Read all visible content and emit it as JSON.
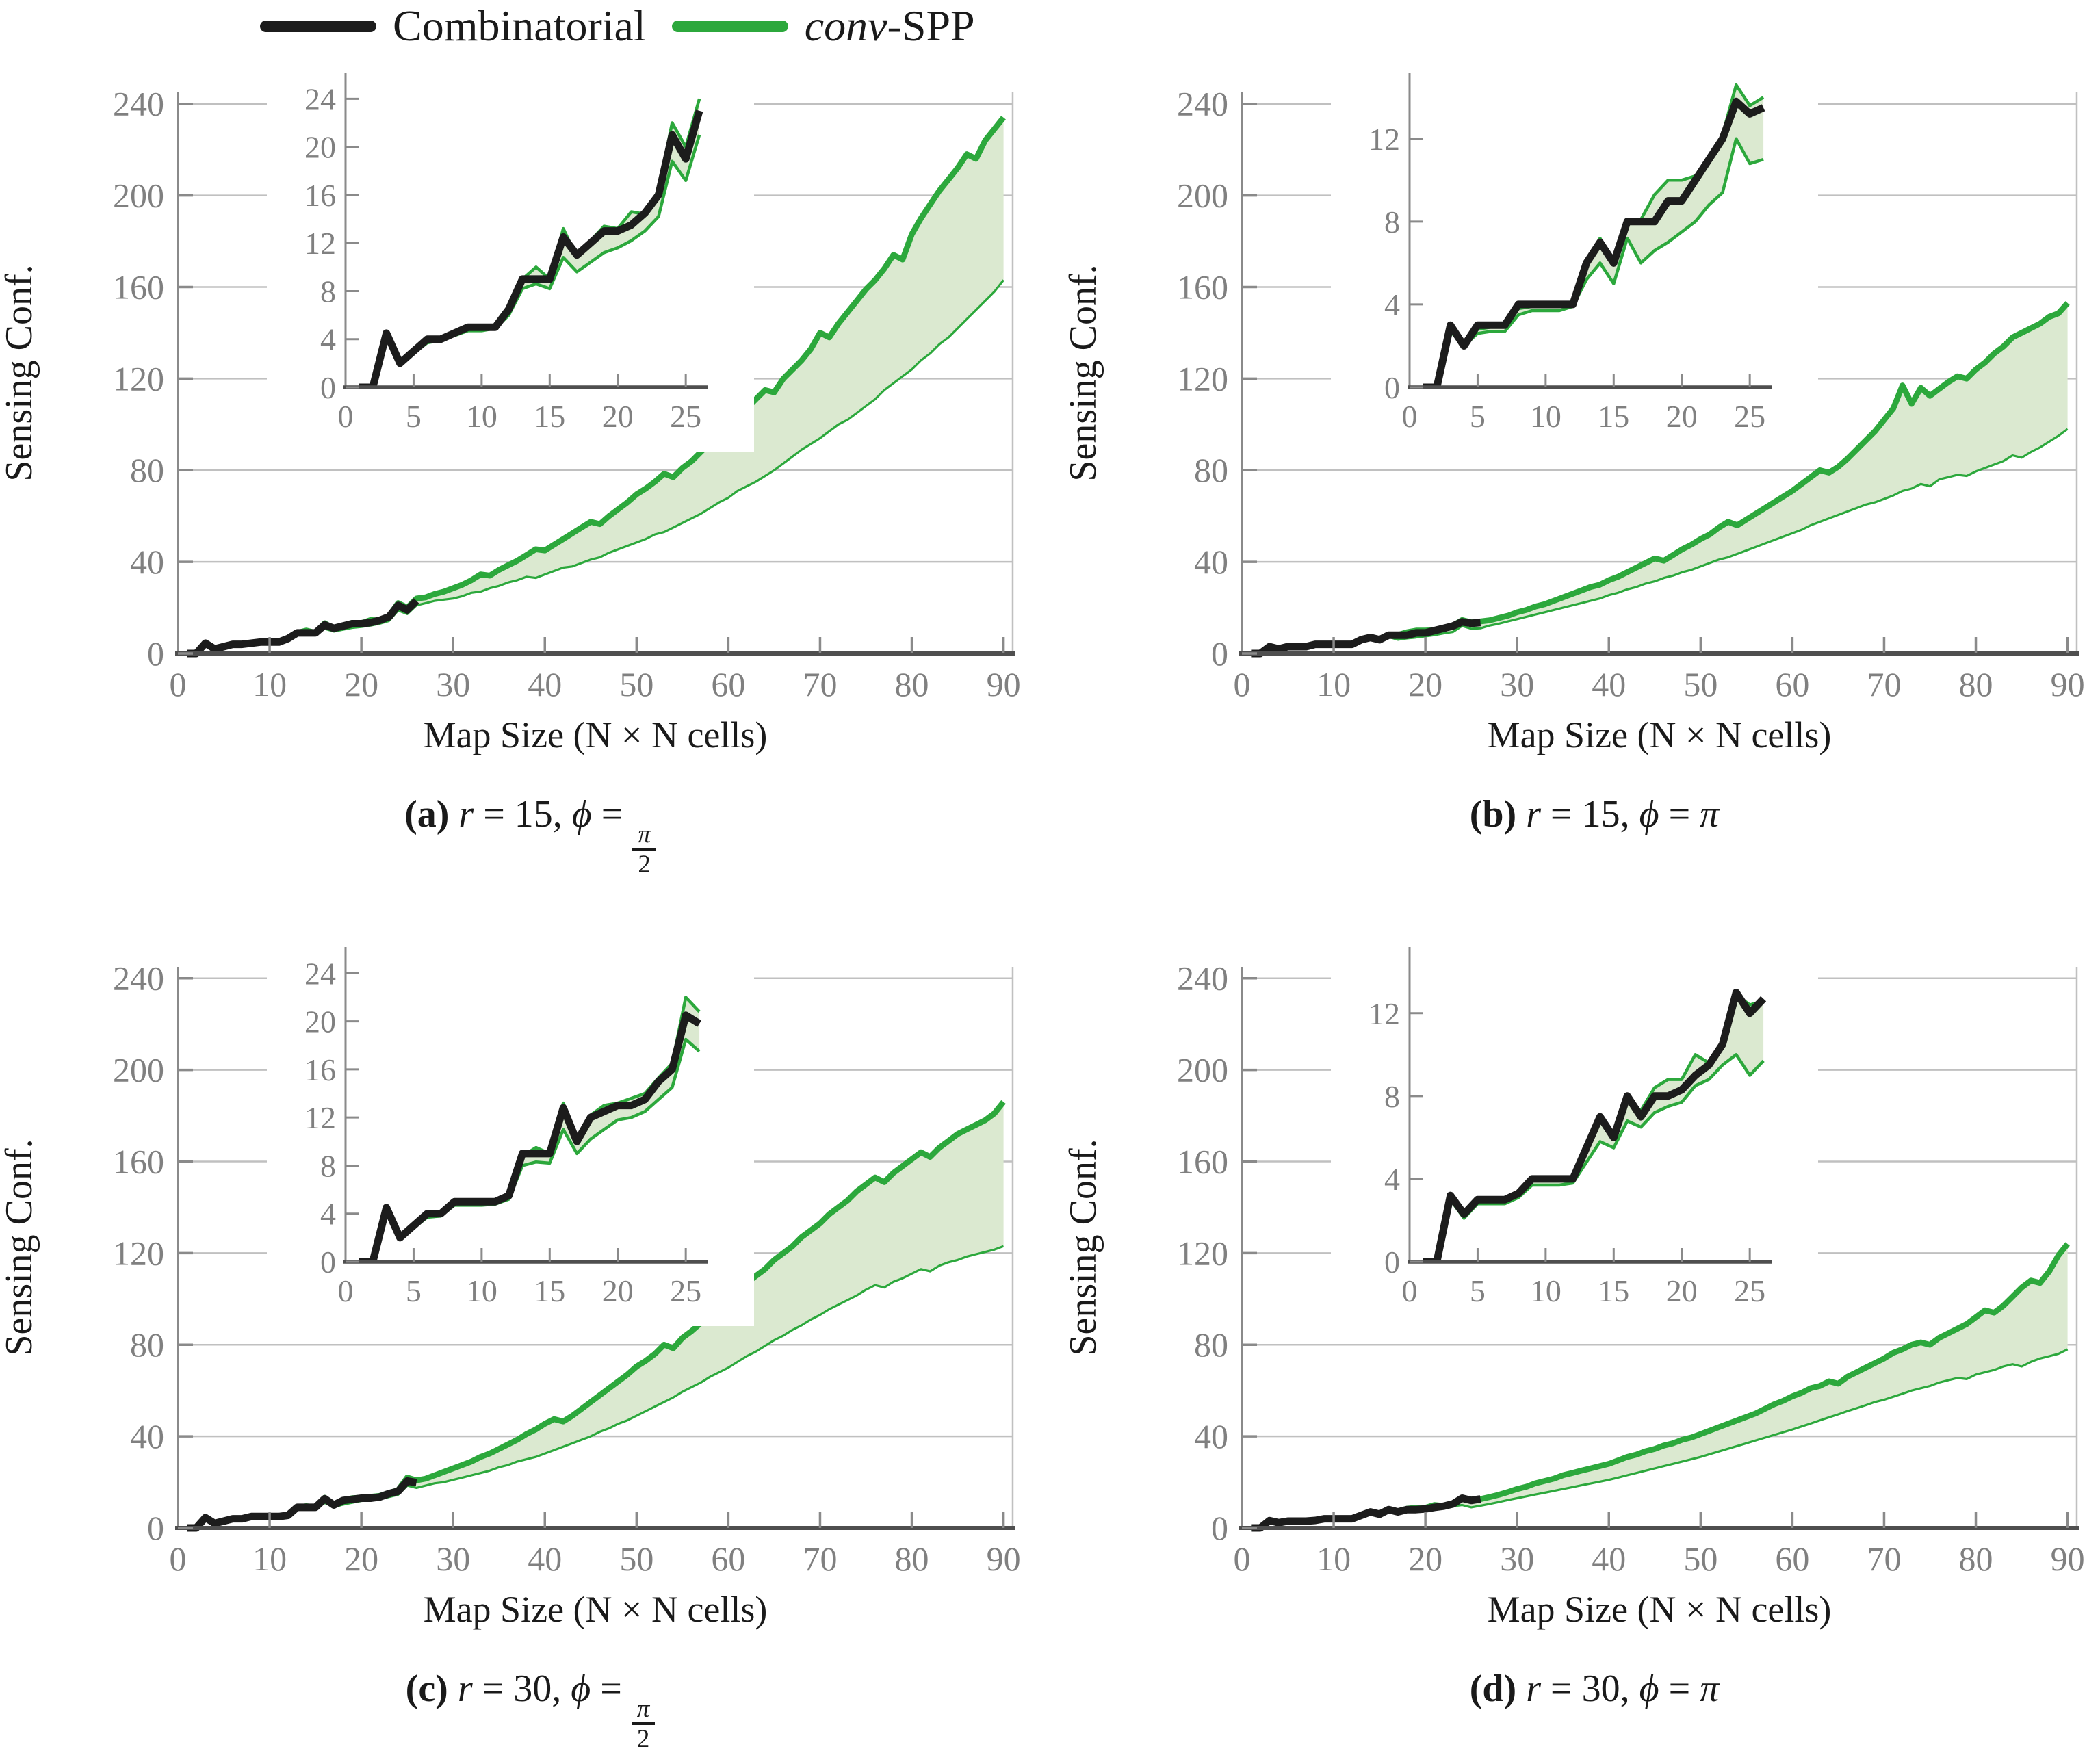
{
  "chart_data": {
    "type": "line",
    "legend": {
      "items": [
        {
          "label": "Combinatorial",
          "color": "#1c1c1c"
        },
        {
          "label_italic": "conv",
          "label_rest": "-SPP",
          "color": "#2ca83c"
        }
      ]
    },
    "colors": {
      "combinatorial": "#1c1c1c",
      "conv_line": "#2ca83c",
      "band_fill": "#dbe9d0",
      "grid": "#c0c0c0",
      "spine_dark": "#4f4f4f",
      "spine_light": "#8a8a8a",
      "tick_text": "#808080",
      "label_text": "#1a1a1a"
    },
    "axes": {
      "main": {
        "xlabel": "Map Size (N × N cells)",
        "ylabel": "Sensing Conf.",
        "xticks": [
          0,
          10,
          20,
          30,
          40,
          50,
          60,
          70,
          80,
          90
        ],
        "yticks": [
          0,
          40,
          80,
          120,
          160,
          200,
          240
        ],
        "xlim": [
          0,
          91
        ],
        "ylim": [
          0,
          245
        ],
        "grid": "horizontal"
      },
      "insets": {
        "hi": {
          "ymax": 25.5,
          "xmax": 26.5,
          "yticks": [
            0,
            4,
            8,
            12,
            16,
            20,
            24
          ],
          "xticks": [
            0,
            5,
            10,
            15,
            20,
            25
          ]
        },
        "lo": {
          "ymax": 14.8,
          "xmax": 26.5,
          "yticks": [
            0,
            4,
            8,
            12
          ],
          "xticks": [
            0,
            5,
            10,
            15,
            20,
            25
          ]
        }
      }
    },
    "charts": [
      {
        "id": "a",
        "inset": "hi",
        "caption": [
          {
            "t": "(a)",
            "bold": true
          },
          {
            "t": " "
          },
          {
            "t": "r",
            "italic": true
          },
          {
            "t": " = 15, "
          },
          {
            "t": "ϕ",
            "italic": true
          },
          {
            "t": " = "
          },
          {
            "frac": [
              "π",
              "2"
            ]
          }
        ],
        "x_start": 1,
        "combinatorial": [
          0,
          0,
          4.5,
          2,
          3,
          4,
          4,
          4.5,
          5,
          5,
          5,
          6.5,
          9,
          9,
          9,
          12.5,
          11,
          12,
          13,
          13,
          13.5,
          14.5,
          16,
          21,
          19,
          23
        ],
        "conv_upper": [
          0,
          0,
          4.3,
          2,
          2.9,
          3.9,
          4,
          4.4,
          4.9,
          4.9,
          5,
          6.4,
          9,
          10,
          9,
          13.2,
          10.8,
          12.2,
          13.4,
          13.2,
          14.6,
          14.4,
          16.4,
          22,
          20,
          24,
          24.5,
          26,
          27,
          28.5,
          30,
          32,
          34.5,
          34,
          36.5,
          38.5,
          40.5,
          43,
          45.5,
          45,
          47.5,
          50,
          52.5,
          55,
          57.5,
          56.5,
          60,
          63,
          66,
          69.5,
          72,
          75,
          78.5,
          77,
          81,
          84,
          88,
          92,
          96,
          104,
          102,
          107,
          111,
          115,
          114,
          120,
          124,
          128,
          133,
          140,
          138,
          144,
          149,
          154,
          159,
          163,
          168,
          174,
          172,
          183,
          190,
          196,
          202,
          207,
          212,
          218,
          216,
          224,
          229,
          234
        ],
        "conv_lower": [
          0,
          0,
          4.1,
          1.9,
          2.8,
          3.7,
          3.9,
          4.3,
          4.7,
          4.7,
          4.9,
          6,
          8.2,
          8.6,
          8.2,
          10.8,
          9.6,
          10.4,
          11.2,
          11.6,
          12.2,
          13,
          14.2,
          18.8,
          17.2,
          21,
          22,
          23,
          23.5,
          24,
          25,
          26.5,
          27,
          28.5,
          29.5,
          31,
          32,
          33.5,
          33,
          34.5,
          36,
          37.5,
          38,
          39.5,
          41,
          42,
          44,
          45.5,
          47,
          48.5,
          50,
          52,
          53,
          55,
          57,
          59,
          61,
          63.5,
          66,
          68,
          71,
          73,
          75,
          77.5,
          80,
          83,
          86,
          89,
          91.5,
          94,
          97,
          100,
          102,
          105,
          108,
          111,
          115,
          118,
          121,
          124,
          128,
          131,
          135,
          138,
          142,
          146,
          150,
          154,
          158,
          163
        ]
      },
      {
        "id": "b",
        "inset": "lo",
        "caption": [
          {
            "t": "(b)",
            "bold": true
          },
          {
            "t": " "
          },
          {
            "t": "r",
            "italic": true
          },
          {
            "t": " = 15, "
          },
          {
            "t": "ϕ",
            "italic": true
          },
          {
            "t": " = "
          },
          {
            "t": "π",
            "italic": true
          }
        ],
        "x_start": 1,
        "combinatorial": [
          0,
          0,
          3,
          2,
          3,
          3,
          3,
          4,
          4,
          4,
          4,
          4,
          6,
          7,
          6,
          8,
          8,
          8,
          9,
          9,
          10,
          11,
          12,
          13.8,
          13.2,
          13.5
        ],
        "conv_upper": [
          0,
          0,
          2.9,
          2.1,
          2.8,
          2.9,
          2.9,
          3.8,
          3.9,
          3.9,
          3.9,
          4,
          5.8,
          7.2,
          5.9,
          8,
          8.1,
          9.3,
          10,
          10,
          10.2,
          11,
          12.2,
          14.6,
          13.6,
          14,
          14.5,
          15.5,
          16.5,
          18,
          19,
          20.5,
          21.5,
          23,
          24.5,
          26,
          27.5,
          29,
          30,
          32,
          33.5,
          35.5,
          37.5,
          39.5,
          41.5,
          40.5,
          43,
          45.5,
          47.5,
          50,
          52,
          55,
          57.5,
          56,
          58.5,
          61,
          63.5,
          66,
          68.5,
          71,
          74,
          77,
          80,
          79,
          81.5,
          85,
          89,
          93,
          97,
          102,
          107,
          117,
          109,
          116,
          112.5,
          115.5,
          118.5,
          121,
          120,
          124,
          127,
          131,
          134,
          138,
          140,
          142,
          144,
          147,
          148.5,
          153
        ],
        "conv_lower": [
          0,
          0,
          2.7,
          2,
          2.6,
          2.7,
          2.7,
          3.5,
          3.7,
          3.7,
          3.7,
          3.9,
          5.2,
          6,
          5,
          7.2,
          6,
          6.6,
          7,
          7.5,
          8,
          8.8,
          9.4,
          12,
          10.8,
          11,
          12.2,
          13,
          14,
          15,
          16,
          17,
          18,
          19,
          20,
          21,
          22,
          23,
          24,
          25.5,
          26.5,
          28,
          29,
          30.5,
          31.5,
          33,
          34,
          35.5,
          36.5,
          38,
          39.5,
          41,
          42,
          43.5,
          45,
          46.5,
          48,
          49.5,
          51,
          52.5,
          54,
          56,
          57.5,
          59,
          60.5,
          62,
          63.5,
          65,
          66,
          67.5,
          69,
          71,
          72,
          74,
          73,
          76,
          77,
          78,
          77.5,
          79.5,
          81,
          82.5,
          84,
          86.5,
          85.5,
          88,
          90,
          92.5,
          95,
          98
        ]
      },
      {
        "id": "c",
        "inset": "hi",
        "caption": [
          {
            "t": "(c)",
            "bold": true
          },
          {
            "t": " "
          },
          {
            "t": "r",
            "italic": true
          },
          {
            "t": " = 30, "
          },
          {
            "t": "ϕ",
            "italic": true
          },
          {
            "t": " = "
          },
          {
            "frac": [
              "π",
              "2"
            ]
          }
        ],
        "x_start": 1,
        "combinatorial": [
          0,
          0,
          4.5,
          2,
          3,
          4,
          4,
          5,
          5,
          5,
          5,
          5.5,
          9,
          9,
          9,
          12.8,
          10,
          12,
          12.5,
          13,
          13,
          13.5,
          15,
          16,
          20.5,
          19.8
        ],
        "conv_upper": [
          0,
          0,
          4.3,
          2,
          2.9,
          3.9,
          4,
          4.9,
          4.9,
          4.9,
          5,
          5.5,
          8.8,
          9.5,
          9,
          13.2,
          10.3,
          12.2,
          13,
          13.2,
          13.6,
          14,
          15.3,
          16.5,
          22,
          20.8,
          21.5,
          23,
          24.5,
          26,
          27.5,
          29,
          31,
          32.5,
          34.5,
          36.5,
          38.5,
          41,
          43,
          45.5,
          47.5,
          46.5,
          49,
          52,
          55,
          58,
          61,
          64,
          67,
          70.5,
          73,
          76,
          80,
          78.5,
          83,
          86,
          89.5,
          93,
          96.5,
          101,
          104,
          107,
          110,
          113,
          117,
          120,
          123,
          127,
          130,
          133,
          137,
          140,
          143,
          147,
          150,
          153,
          151,
          155,
          158,
          161,
          164,
          162,
          166,
          169,
          172,
          174,
          176,
          178,
          181,
          186
        ],
        "conv_lower": [
          0,
          0,
          4.1,
          1.9,
          2.8,
          3.7,
          3.8,
          4.7,
          4.7,
          4.7,
          4.8,
          5.2,
          8,
          8.3,
          8.2,
          11,
          9,
          10.2,
          11,
          11.8,
          12,
          12.5,
          13.5,
          14.5,
          18.5,
          17.5,
          18.5,
          19.5,
          20,
          21,
          22,
          23,
          24,
          25,
          26.5,
          27.5,
          29,
          30,
          31,
          32.5,
          34,
          35.5,
          37,
          38.5,
          40,
          42,
          43.5,
          45.5,
          47,
          49,
          51,
          53,
          55,
          57,
          59.5,
          61.5,
          63.5,
          66,
          68,
          70,
          72.5,
          75,
          77,
          79.5,
          82,
          84,
          86.5,
          88.5,
          91,
          93,
          95.5,
          97.5,
          99.5,
          101.5,
          104,
          106,
          105,
          107.5,
          109,
          111,
          113,
          112,
          114.5,
          116,
          117,
          118.5,
          119.5,
          120.5,
          121.5,
          123
        ]
      },
      {
        "id": "d",
        "inset": "lo",
        "caption": [
          {
            "t": "(d)",
            "bold": true
          },
          {
            "t": " "
          },
          {
            "t": "r",
            "italic": true
          },
          {
            "t": " = 30, "
          },
          {
            "t": "ϕ",
            "italic": true
          },
          {
            "t": " = "
          },
          {
            "t": "π",
            "italic": true
          }
        ],
        "x_start": 1,
        "combinatorial": [
          0,
          0,
          3.2,
          2.3,
          3,
          3,
          3,
          3.3,
          4,
          4,
          4,
          4,
          5.5,
          7,
          6,
          8,
          7,
          8,
          8,
          8.3,
          9,
          9.5,
          10.5,
          13,
          12,
          12.7
        ],
        "conv_upper": [
          0,
          0,
          3.1,
          2.2,
          2.9,
          2.9,
          2.9,
          3.2,
          3.9,
          3.9,
          3.9,
          4,
          5.3,
          6.8,
          6.2,
          7.8,
          7.3,
          8.4,
          8.8,
          8.8,
          10,
          9.6,
          10.4,
          12.9,
          12.4,
          12.6,
          13.5,
          14.5,
          15.7,
          17,
          18,
          19.5,
          20.5,
          21.5,
          23,
          24,
          25,
          26,
          27,
          28,
          29.5,
          31,
          32,
          33.5,
          34.5,
          36,
          37,
          38.5,
          39.5,
          41,
          42.5,
          44,
          45.5,
          47,
          48.5,
          50,
          52,
          54,
          55.5,
          57.5,
          59,
          61,
          62,
          64,
          63,
          66,
          68,
          70,
          72,
          74,
          76.5,
          78,
          80,
          81,
          80,
          83,
          85,
          87,
          89,
          92,
          95,
          94,
          97,
          101,
          105,
          108,
          107,
          112,
          119,
          124
        ],
        "conv_lower": [
          0,
          0,
          3,
          2.1,
          2.8,
          2.8,
          2.8,
          3.1,
          3.7,
          3.7,
          3.7,
          3.8,
          4.8,
          5.8,
          5.5,
          6.8,
          6.5,
          7.2,
          7.5,
          7.7,
          8.5,
          8.8,
          9.5,
          10,
          9,
          9.7,
          10.5,
          11.3,
          12.2,
          13,
          13.8,
          14.6,
          15.4,
          16.2,
          17,
          17.8,
          18.6,
          19.4,
          20.2,
          21,
          22,
          23,
          24,
          25,
          26,
          27,
          28,
          29,
          30,
          31,
          32.2,
          33.4,
          34.6,
          35.8,
          37,
          38.2,
          39.4,
          40.6,
          41.8,
          43,
          44.3,
          45.6,
          47,
          48.3,
          49.6,
          51,
          52.3,
          53.6,
          55,
          56,
          57.3,
          58.6,
          60,
          61,
          62,
          63.5,
          64.5,
          65.5,
          65,
          67,
          68,
          69,
          70.5,
          71.5,
          70.5,
          72.5,
          74,
          75,
          76,
          78
        ]
      }
    ]
  }
}
